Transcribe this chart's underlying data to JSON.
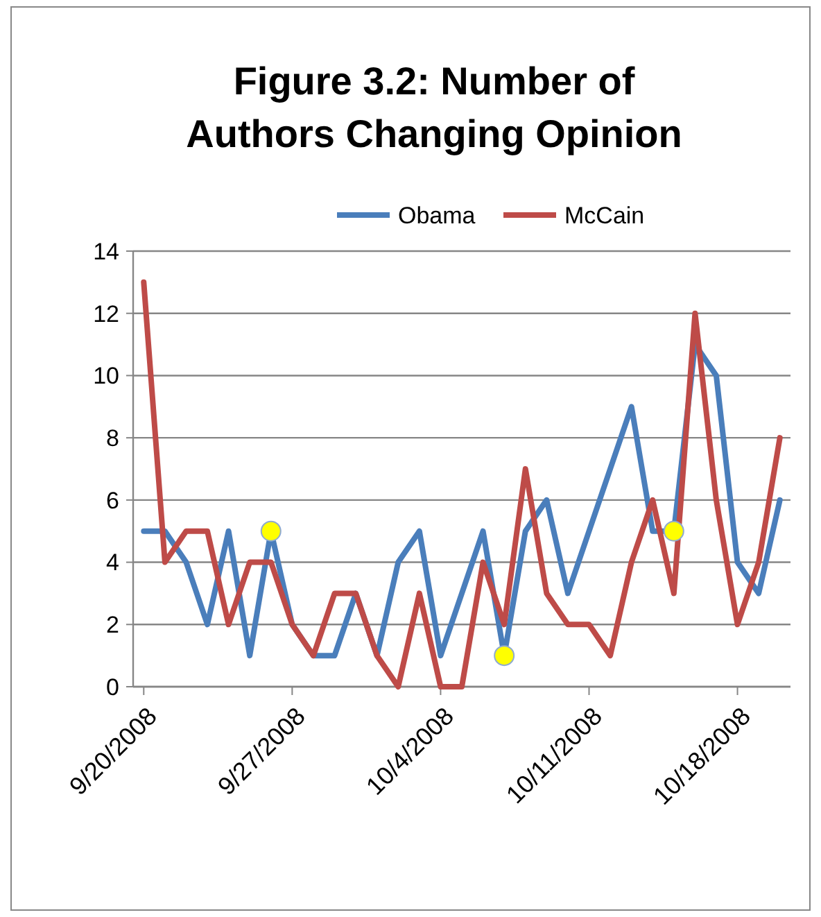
{
  "chart_data": {
    "type": "line",
    "title": "Figure 3.2: Number of Authors Changing Opinion",
    "x": [
      "2008-09-20",
      "2008-09-21",
      "2008-09-22",
      "2008-09-23",
      "2008-09-24",
      "2008-09-25",
      "2008-09-26",
      "2008-09-27",
      "2008-09-28",
      "2008-09-29",
      "2008-09-30",
      "2008-10-01",
      "2008-10-02",
      "2008-10-03",
      "2008-10-04",
      "2008-10-05",
      "2008-10-06",
      "2008-10-07",
      "2008-10-08",
      "2008-10-09",
      "2008-10-10",
      "2008-10-11",
      "2008-10-12",
      "2008-10-13",
      "2008-10-14",
      "2008-10-15",
      "2008-10-16",
      "2008-10-17",
      "2008-10-18",
      "2008-10-19",
      "2008-10-20"
    ],
    "series": [
      {
        "name": "Obama",
        "color": "#4a7ebb",
        "values": [
          5,
          5,
          4,
          2,
          5,
          1,
          5,
          2,
          1,
          1,
          3,
          1,
          4,
          5,
          1,
          3,
          5,
          1,
          5,
          6,
          3,
          5,
          7,
          9,
          5,
          5,
          11,
          10,
          4,
          3,
          6
        ]
      },
      {
        "name": "McCain",
        "color": "#be4b48",
        "values": [
          13,
          4,
          5,
          5,
          2,
          4,
          4,
          2,
          1,
          3,
          3,
          1,
          0,
          3,
          0,
          0,
          4,
          2,
          7,
          3,
          2,
          2,
          1,
          4,
          6,
          3,
          12,
          6,
          2,
          4,
          8
        ]
      },
      {
        "type": "scatter",
        "marker": "circle",
        "color": "#ffff00",
        "x": [
          "2008-09-26",
          "2008-10-07",
          "2008-10-15"
        ],
        "values": [
          5,
          1,
          5
        ]
      }
    ],
    "xlim": [
      "2008-09-19T12:00",
      "2008-10-20T12:00"
    ],
    "xticks": [
      {
        "value": "2008-09-20",
        "label": "9/20/2008"
      },
      {
        "value": "2008-09-27",
        "label": "9/27/2008"
      },
      {
        "value": "2008-10-04",
        "label": "10/4/2008"
      },
      {
        "value": "2008-10-11",
        "label": "10/11/2008"
      },
      {
        "value": "2008-10-18",
        "label": "10/18/2008"
      }
    ],
    "ylim": [
      0,
      14
    ],
    "yticks": [
      0,
      2,
      4,
      6,
      8,
      10,
      12,
      14
    ],
    "grid": "y",
    "legend": "top",
    "line_style": "solid"
  }
}
